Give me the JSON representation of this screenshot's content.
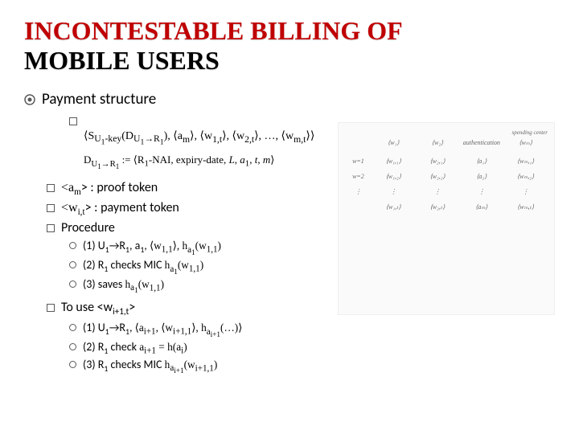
{
  "title": {
    "line1": "INCONTESTABLE BILLING OF",
    "line2": "MOBILE USERS"
  },
  "main_bullet": "Payment structure",
  "formula1_html": "⟨S<sub>U<sub>1</sub>-key</sub>(D<sub>U<sub>1</sub>→R<sub>1</sub></sub>), ⟨a<sub>m</sub>⟩, ⟨w<sub>1,t</sub>⟩, ⟨w<sub>2,t</sub>⟩, …, ⟨w<sub>m,t</sub>⟩⟩",
  "formula2_html": "D<sub>U<sub>1</sub>→R<sub>1</sub></sub> := ⟨R<sub>1</sub>-NAI, expiry-date, <i>L</i>, <i>a</i><sub>1</sub>, <i>t</i>, <i>m</i>⟩",
  "b_am_prefix": "<a",
  "b_am_sub": "m",
  "b_am_suffix": "> : proof token",
  "b_wit_prefix": "<w",
  "b_wit_sub": "i,t",
  "b_wit_suffix": "> : payment token",
  "b_proc": "Procedure",
  "proc1_label": "(1) U",
  "proc1_sub1": "1",
  "proc1_mid": "→R",
  "proc1_sub2": "1",
  "proc1_mid2": ", a",
  "proc1_sub3": "1",
  "proc1_after": ", ",
  "proc1_tail_html": "⟨w<sub>1,1</sub>⟩, h<sub>a<sub>1</sub></sub>(w<sub>1,1</sub>)",
  "proc2_label": "(2) R",
  "proc2_sub": "1",
  "proc2_text": " checks MIC ",
  "proc2_tail_html": "h<sub>a<sub>1</sub></sub>(w<sub>1,1</sub>)",
  "proc3_label": "(3) saves ",
  "proc3_tail_html": "h<sub>a<sub>1</sub></sub>(w<sub>1,1</sub>)",
  "b_touse_prefix": "To use <w",
  "b_touse_sub": "i+1,t",
  "b_touse_suffix": ">",
  "use1_label": "(1) U",
  "use1_sub1": "1",
  "use1_mid": "→R",
  "use1_sub2": "1",
  "use1_after": ", ",
  "use1_tail_html": "⟨a<sub>i+1</sub>, ⟨w<sub>i+1,1</sub>⟩, h<sub>a<sub>i+1</sub></sub>(…)⟩",
  "use2_label": "(2) R",
  "use2_sub": "1",
  "use2_text": " check ",
  "use2_tail_html": "a<sub>i+1</sub> = h(a<sub>i</sub>)",
  "use3_label": "(3) R",
  "use3_sub": "1",
  "use3_text": " checks MIC ",
  "use3_tail_html": "h<sub>a<sub>i+1</sub></sub>(w<sub>i+1,1</sub>)",
  "diagram": {
    "header_left": "spending center",
    "cols": [
      "⟨w₁⟩",
      "⟨w₂⟩",
      "authentication",
      "⟨wₘ⟩"
    ],
    "rows": [
      [
        "w=1",
        "⟨w₁,₁⟩",
        "⟨w₂,₁⟩",
        "⟨a₁⟩",
        "⟨wₘ,₁⟩"
      ],
      [
        "w=2",
        "⟨w₁,₂⟩",
        "⟨w₂,₂⟩",
        "⟨a₂⟩",
        "⟨wₘ,₂⟩"
      ],
      [
        "⋮",
        "⋮",
        "⋮",
        "⋮",
        "⋮"
      ],
      [
        "",
        "⟨w₁,ₜ⟩",
        "⟨w₂,ₜ⟩",
        "⟨aₘ⟩",
        "⟨wₘ,ₜ⟩"
      ]
    ]
  }
}
